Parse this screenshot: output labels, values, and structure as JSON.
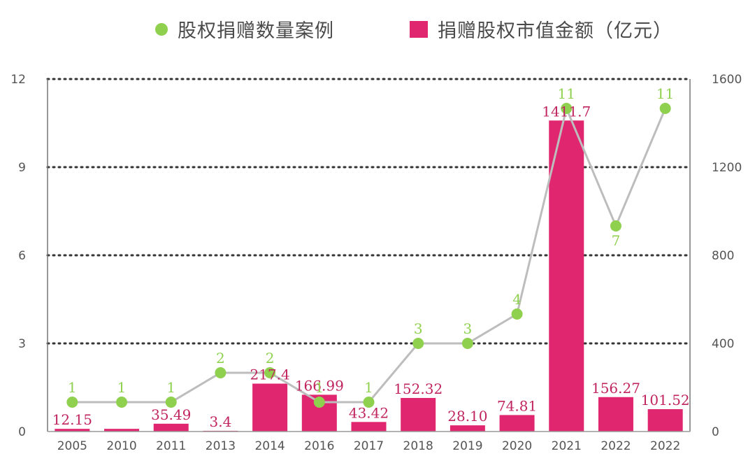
{
  "legend": {
    "line_label": "股权捐赠数量案例",
    "bar_label": "捐赠股权市值金额（亿元）"
  },
  "colors": {
    "bar": "#e0266f",
    "bar_label": "#c0245f",
    "line": "#bdbdbd",
    "point": "#8fd14f",
    "grid": "#333333"
  },
  "chart_data": {
    "type": "bar",
    "categories": [
      "2005",
      "2010",
      "2011",
      "2013",
      "2014",
      "2016",
      "2017",
      "2018",
      "2019",
      "2020",
      "2021",
      "2022",
      "2022"
    ],
    "series": [
      {
        "name": "捐赠股权市值金额（亿元）",
        "type": "bar",
        "axis": "right",
        "values": [
          12.15,
          12.15,
          35.49,
          3.4,
          217.4,
          166.99,
          43.42,
          152.32,
          28.1,
          74.81,
          1411.7,
          156.27,
          101.52
        ],
        "labels": [
          "12.15",
          "",
          "35.49",
          "3.4",
          "217.4",
          "166.99",
          "43.42",
          "152.32",
          "28.10",
          "74.81",
          "1411.7",
          "156.27",
          "101.52"
        ]
      },
      {
        "name": "股权捐赠数量案例",
        "type": "line",
        "axis": "left",
        "values": [
          1,
          1,
          1,
          2,
          2,
          1,
          1,
          3,
          3,
          4,
          11,
          7,
          11
        ],
        "labels": [
          "1",
          "1",
          "1",
          "2",
          "2",
          "1",
          "1",
          "3",
          "3",
          "4",
          "11",
          "7",
          "11"
        ]
      }
    ],
    "yleft_ticks": [
      "0",
      "3",
      "6",
      "9",
      "12"
    ],
    "yleft_lim": [
      0,
      12
    ],
    "yright_ticks": [
      "0",
      "400",
      "800",
      "1200",
      "1600"
    ],
    "yright_lim": [
      0,
      1600
    ],
    "grid": true,
    "legend_position": "top"
  }
}
